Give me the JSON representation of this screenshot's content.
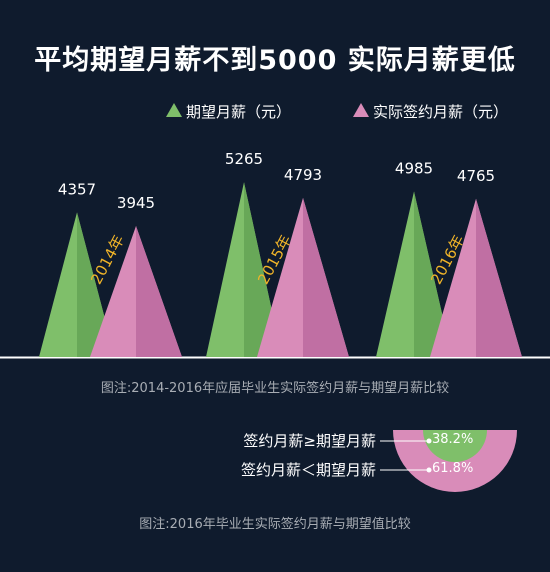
{
  "title": "平均期望月薪不到5000 实际月薪更低",
  "legend": {
    "expected": "期望月薪（元）",
    "actual": "实际签约月薪（元）"
  },
  "caption1": "图注:2014-2016年应届毕业生实际签约月薪与期望月薪比较",
  "caption2": "图注:2016年毕业生实际签约月薪与期望值比较",
  "colors": {
    "expected": "#7fbf6a",
    "expected_dark": "#68a858",
    "actual": "#d98cb9",
    "actual_dark": "#c06fa3",
    "background": "#0f1b2d",
    "year_text": "#f0b429"
  },
  "chart_data": [
    {
      "type": "bar",
      "categories": [
        "2014年",
        "2015年",
        "2016年"
      ],
      "series": [
        {
          "name": "期望月薪（元）",
          "values": [
            4357,
            5265,
            4985
          ]
        },
        {
          "name": "实际签约月薪（元）",
          "values": [
            3945,
            4793,
            4765
          ]
        }
      ],
      "data_labels": [
        [
          "4357",
          "3945"
        ],
        [
          "5265",
          "4793"
        ],
        [
          "4985",
          "4765"
        ]
      ],
      "title": "平均期望月薪不到5000 实际月薪更低"
    },
    {
      "type": "pie",
      "categories": [
        "签约月薪≥期望月薪",
        "签约月薪＜期望月薪"
      ],
      "values": [
        38.2,
        61.8
      ],
      "labels": [
        "38.2%",
        "61.8%"
      ]
    }
  ]
}
